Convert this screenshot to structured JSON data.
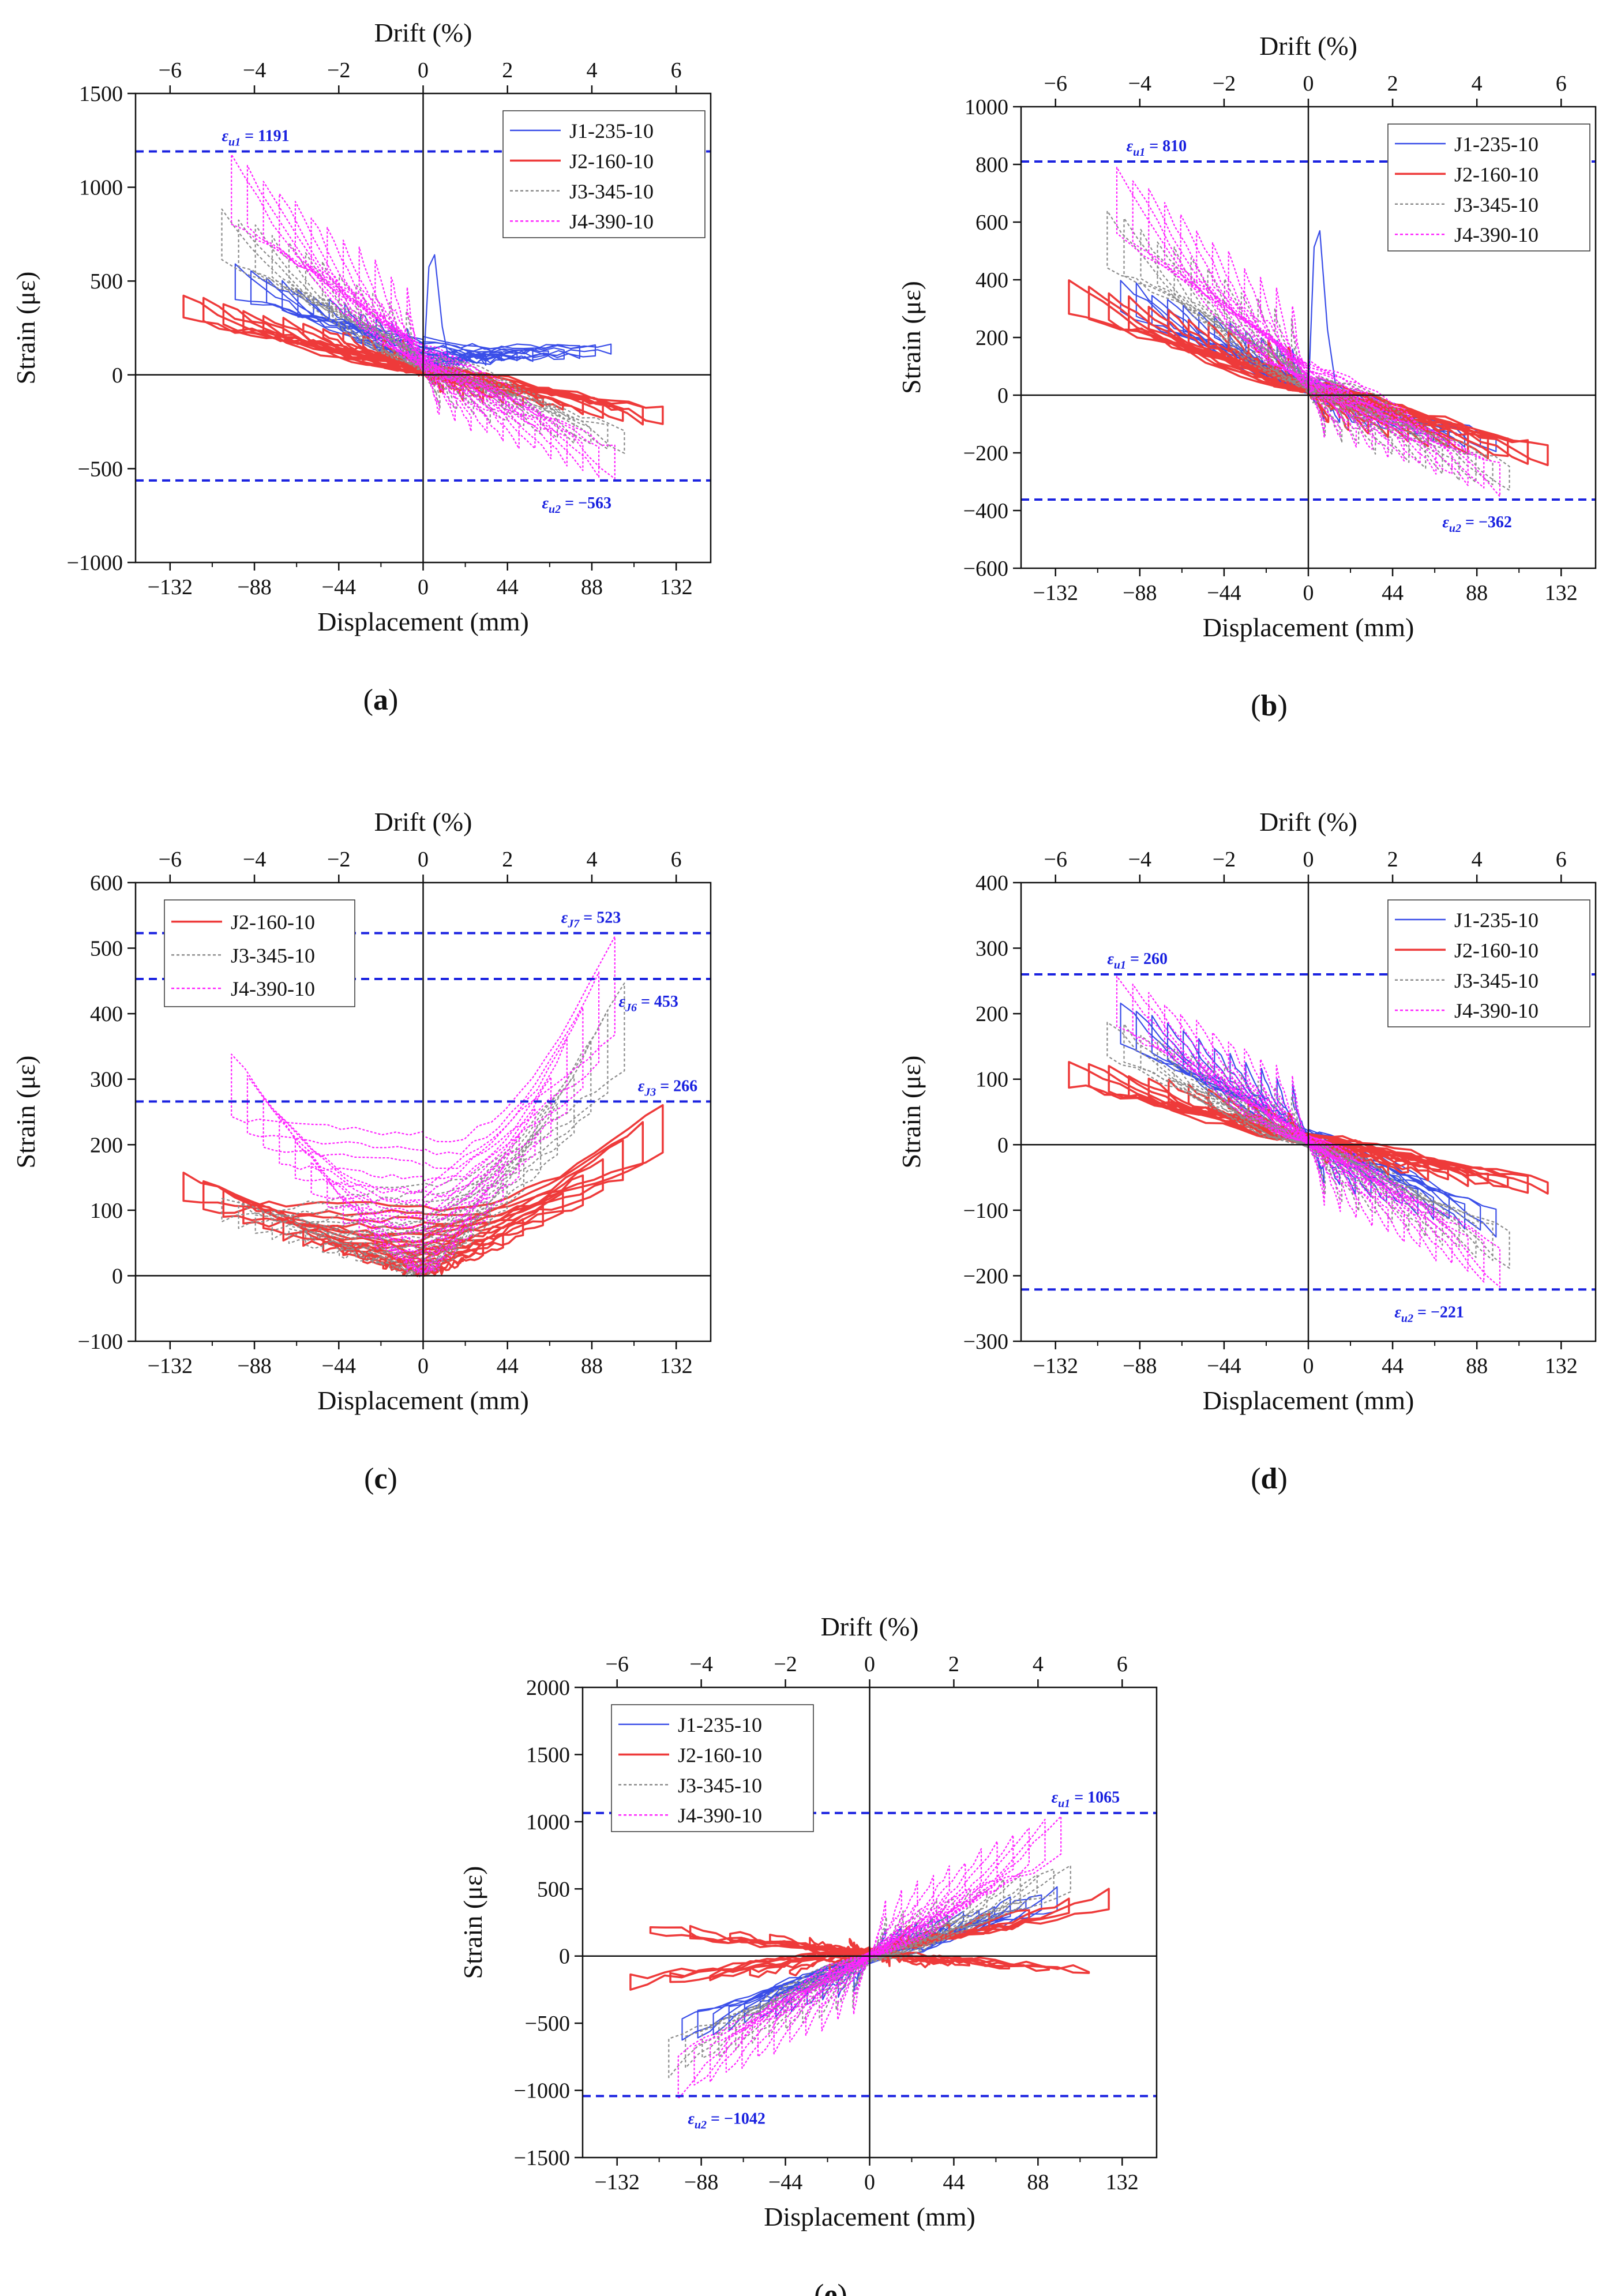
{
  "colors": {
    "J1": "#3a4ee8",
    "J2": "#ee3a3a",
    "J3": "#8c8c8c",
    "J4": "#ff22ff",
    "limit": "#1a22e0",
    "axis": "#111111"
  },
  "chart_data": [
    {
      "panel": "(a)",
      "panel_letter": "a",
      "type": "line",
      "x2label": "Drift (%)",
      "xlabel": "Displacement (mm)",
      "ylabel": "Strain (με)",
      "xlim": [
        -150,
        150
      ],
      "ylim": [
        -1000,
        1500
      ],
      "x_ticks": [
        -132,
        -88,
        -44,
        0,
        44,
        88,
        132
      ],
      "x2_ticks": [
        -6,
        -4,
        -2,
        0,
        2,
        4,
        6
      ],
      "y_ticks": [
        -1000,
        -500,
        0,
        500,
        1000,
        1500
      ],
      "legend": {
        "position": "top-right",
        "entries": [
          "J1-235-10",
          "J2-160-10",
          "J3-345-10",
          "J4-390-10"
        ]
      },
      "limit_lines": [
        {
          "value": 1191,
          "sym": "ε",
          "sub": "u1",
          "text": " = 1191",
          "label_x": -105,
          "label_side": "above"
        },
        {
          "value": -563,
          "sym": "ε",
          "sub": "u2",
          "text": " = −563",
          "label_x": 62,
          "label_side": "below"
        }
      ],
      "series": [
        {
          "name": "J1-235-10",
          "key": "J1",
          "max_disp": 98,
          "pos_peak": 250,
          "neg_peak": -280,
          "neg_disp_peak": 590,
          "pos_disp_peak": 170,
          "near_zero_peak": 640,
          "shape": "desc"
        },
        {
          "name": "J2-160-10",
          "key": "J2",
          "max_disp": 125,
          "pos_peak": 420,
          "neg_peak": -280,
          "neg_disp_peak": 420,
          "pos_disp_peak": -260,
          "shape": "desc"
        },
        {
          "name": "J3-345-10",
          "key": "J3",
          "max_disp": 105,
          "pos_peak": 880,
          "neg_peak": -420,
          "neg_disp_peak": 880,
          "pos_disp_peak": -420,
          "shape": "desc"
        },
        {
          "name": "J4-390-10",
          "key": "J4",
          "max_disp": 100,
          "pos_peak": 1170,
          "neg_peak": -560,
          "neg_disp_peak": 1170,
          "pos_disp_peak": -560,
          "shape": "desc"
        }
      ]
    },
    {
      "panel": "(b)",
      "panel_letter": "b",
      "type": "line",
      "x2label": "Drift (%)",
      "xlabel": "Displacement (mm)",
      "ylabel": "Strain (με)",
      "xlim": [
        -150,
        150
      ],
      "ylim": [
        -600,
        1000
      ],
      "x_ticks": [
        -132,
        -88,
        -44,
        0,
        44,
        88,
        132
      ],
      "x2_ticks": [
        -6,
        -4,
        -2,
        0,
        2,
        4,
        6
      ],
      "y_ticks": [
        -600,
        -400,
        -200,
        0,
        200,
        400,
        600,
        800,
        1000
      ],
      "legend": {
        "position": "top-right",
        "entries": [
          "J1-235-10",
          "J2-160-10",
          "J3-345-10",
          "J4-390-10"
        ]
      },
      "limit_lines": [
        {
          "value": 810,
          "sym": "ε",
          "sub": "u1",
          "text": " = 810",
          "label_x": -95,
          "label_side": "above"
        },
        {
          "value": -362,
          "sym": "ε",
          "sub": "u2",
          "text": " = −362",
          "label_x": 70,
          "label_side": "below"
        }
      ],
      "series": [
        {
          "name": "J1-235-10",
          "key": "J1",
          "max_disp": 98,
          "pos_peak": 560,
          "neg_peak": -320,
          "neg_disp_peak": 400,
          "pos_disp_peak": -200,
          "near_zero_peak": 570,
          "shape": "desc"
        },
        {
          "name": "J2-160-10",
          "key": "J2",
          "max_disp": 125,
          "pos_peak": 400,
          "neg_peak": -250,
          "neg_disp_peak": 400,
          "pos_disp_peak": -250,
          "shape": "desc"
        },
        {
          "name": "J3-345-10",
          "key": "J3",
          "max_disp": 105,
          "pos_peak": 640,
          "neg_peak": -340,
          "neg_disp_peak": 640,
          "pos_disp_peak": -340,
          "shape": "desc"
        },
        {
          "name": "J4-390-10",
          "key": "J4",
          "max_disp": 100,
          "pos_peak": 790,
          "neg_peak": -340,
          "neg_disp_peak": 790,
          "pos_disp_peak": -340,
          "shape": "desc"
        }
      ]
    },
    {
      "panel": "(c)",
      "panel_letter": "c",
      "type": "line",
      "x2label": "Drift (%)",
      "xlabel": "Displacement (mm)",
      "ylabel": "Strain (με)",
      "xlim": [
        -150,
        150
      ],
      "ylim": [
        -100,
        600
      ],
      "x_ticks": [
        -132,
        -88,
        -44,
        0,
        44,
        88,
        132
      ],
      "x2_ticks": [
        -6,
        -4,
        -2,
        0,
        2,
        4,
        6
      ],
      "y_ticks": [
        -100,
        0,
        100,
        200,
        300,
        400,
        500,
        600
      ],
      "legend": {
        "position": "top-left",
        "entries": [
          "J2-160-10",
          "J3-345-10",
          "J4-390-10"
        ]
      },
      "limit_lines": [
        {
          "value": 523,
          "sym": "ε",
          "sub": "J7",
          "text": " = 523",
          "label_x": 72,
          "label_side": "above"
        },
        {
          "value": 453,
          "sym": "ε",
          "sub": "J6",
          "text": " = 453",
          "label_x": 102,
          "label_side": "below"
        },
        {
          "value": 266,
          "sym": "ε",
          "sub": "J3",
          "text": " = 266",
          "label_x": 112,
          "label_side": "above"
        }
      ],
      "series": [
        {
          "name": "J2-160-10",
          "key": "J2",
          "max_disp": 125,
          "neg_disp_peak": 160,
          "pos_disp_peak": 265,
          "shape": "v"
        },
        {
          "name": "J3-345-10",
          "key": "J3",
          "max_disp": 105,
          "neg_disp_peak": 120,
          "pos_disp_peak": 450,
          "shape": "v"
        },
        {
          "name": "J4-390-10",
          "key": "J4",
          "max_disp": 100,
          "neg_disp_peak": 340,
          "pos_disp_peak": 520,
          "shape": "v"
        }
      ]
    },
    {
      "panel": "(d)",
      "panel_letter": "d",
      "type": "line",
      "x2label": "Drift (%)",
      "xlabel": "Displacement (mm)",
      "ylabel": "Strain (με)",
      "xlim": [
        -150,
        150
      ],
      "ylim": [
        -300,
        400
      ],
      "x_ticks": [
        -132,
        -88,
        -44,
        0,
        44,
        88,
        132
      ],
      "x2_ticks": [
        -6,
        -4,
        -2,
        0,
        2,
        4,
        6
      ],
      "y_ticks": [
        -300,
        -200,
        -100,
        0,
        100,
        200,
        300,
        400
      ],
      "legend": {
        "position": "top-right",
        "entries": [
          "J1-235-10",
          "J2-160-10",
          "J3-345-10",
          "J4-390-10"
        ]
      },
      "limit_lines": [
        {
          "value": 260,
          "sym": "ε",
          "sub": "u1",
          "text": " = 260",
          "label_x": -105,
          "label_side": "above"
        },
        {
          "value": -221,
          "sym": "ε",
          "sub": "u2",
          "text": " = −221",
          "label_x": 45,
          "label_side": "below"
        }
      ],
      "series": [
        {
          "name": "J1-235-10",
          "key": "J1",
          "max_disp": 98,
          "neg_disp_peak": 220,
          "pos_disp_peak": -140,
          "shape": "desc"
        },
        {
          "name": "J2-160-10",
          "key": "J2",
          "max_disp": 125,
          "neg_disp_peak": 130,
          "pos_disp_peak": -75,
          "shape": "desc"
        },
        {
          "name": "J3-345-10",
          "key": "J3",
          "max_disp": 105,
          "neg_disp_peak": 190,
          "pos_disp_peak": -190,
          "shape": "desc"
        },
        {
          "name": "J4-390-10",
          "key": "J4",
          "max_disp": 100,
          "neg_disp_peak": 260,
          "pos_disp_peak": -220,
          "shape": "desc"
        }
      ]
    },
    {
      "panel": "(e)",
      "panel_letter": "e",
      "type": "line",
      "x2label": "Drift (%)",
      "xlabel": "Displacement (mm)",
      "ylabel": "Strain (με)",
      "xlim": [
        -150,
        150
      ],
      "ylim": [
        -1500,
        2000
      ],
      "x_ticks": [
        -132,
        -88,
        -44,
        0,
        44,
        88,
        132
      ],
      "x2_ticks": [
        -6,
        -4,
        -2,
        0,
        2,
        4,
        6
      ],
      "y_ticks": [
        -1500,
        -1000,
        -500,
        0,
        500,
        1000,
        1500,
        2000
      ],
      "legend": {
        "position": "top-left",
        "entries": [
          "J1-235-10",
          "J2-160-10",
          "J3-345-10",
          "J4-390-10"
        ]
      },
      "limit_lines": [
        {
          "value": 1065,
          "sym": "ε",
          "sub": "u1",
          "text": " = 1065",
          "label_x": 95,
          "label_side": "above"
        },
        {
          "value": -1042,
          "sym": "ε",
          "sub": "u2",
          "text": " = −1042",
          "label_x": -95,
          "label_side": "below"
        }
      ],
      "series": [
        {
          "name": "J1-235-10",
          "key": "J1",
          "max_disp": 98,
          "neg_disp_peak": -650,
          "pos_disp_peak": 500,
          "shape": "asc"
        },
        {
          "name": "J2-160-10",
          "key": "J2",
          "max_disp": 125,
          "neg_disp_peak": 250,
          "pos_disp_peak": 480,
          "shape": "band"
        },
        {
          "name": "J3-345-10",
          "key": "J3",
          "max_disp": 105,
          "neg_disp_peak": -880,
          "pos_disp_peak": 700,
          "shape": "asc"
        },
        {
          "name": "J4-390-10",
          "key": "J4",
          "max_disp": 100,
          "neg_disp_peak": -1040,
          "pos_disp_peak": 1060,
          "shape": "asc"
        }
      ]
    }
  ]
}
